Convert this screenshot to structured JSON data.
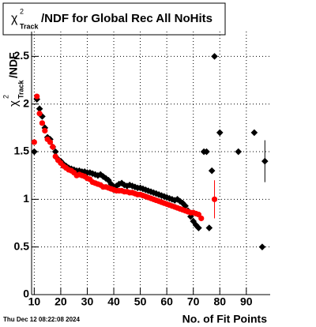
{
  "chart_data": {
    "type": "scatter",
    "title_symbol": "χ",
    "title_sup": "2",
    "title_sub": "Track",
    "title_rest": "/NDF for Global Rec All NoHits",
    "ylabel_symbol": "χ",
    "ylabel_sup": "2",
    "ylabel_sub": "Track",
    "ylabel_rest": "/NDF",
    "xlabel": "No. of Fit Points",
    "timestamp": "Thu Dec 12 08:22:08 2024",
    "xlim": [
      9,
      99
    ],
    "ylim": [
      0,
      2.76
    ],
    "xticks": [
      10,
      20,
      30,
      40,
      50,
      60,
      70,
      80,
      90
    ],
    "yticks": [
      0,
      0.5,
      1,
      1.5,
      2,
      2.5
    ],
    "grid": true,
    "series": [
      {
        "color": "#000000",
        "marker": "diamond",
        "x": [
          10,
          11,
          12,
          13,
          14,
          15,
          16,
          17,
          18,
          19,
          20,
          21,
          22,
          23,
          24,
          25,
          26,
          27,
          28,
          29,
          30,
          31,
          32,
          33,
          34,
          35,
          36,
          37,
          38,
          39,
          40,
          41,
          42,
          43,
          44,
          45,
          46,
          47,
          48,
          49,
          50,
          51,
          52,
          53,
          54,
          55,
          56,
          57,
          58,
          59,
          60,
          61,
          62,
          63,
          64,
          65,
          66,
          67,
          68,
          69,
          70,
          71,
          72,
          74,
          75,
          76,
          77,
          78,
          80,
          87,
          93,
          96,
          97
        ],
        "values": [
          1.5,
          2.05,
          1.95,
          1.87,
          1.75,
          1.65,
          1.63,
          1.55,
          1.5,
          1.42,
          1.4,
          1.37,
          1.35,
          1.33,
          1.32,
          1.31,
          1.3,
          1.3,
          1.29,
          1.29,
          1.28,
          1.28,
          1.27,
          1.26,
          1.25,
          1.26,
          1.24,
          1.22,
          1.2,
          1.16,
          1.13,
          1.14,
          1.16,
          1.17,
          1.15,
          1.14,
          1.15,
          1.14,
          1.13,
          1.12,
          1.12,
          1.11,
          1.1,
          1.09,
          1.08,
          1.07,
          1.06,
          1.05,
          1.04,
          1.03,
          1.02,
          1.01,
          1.0,
          0.99,
          1.0,
          0.98,
          0.96,
          0.93,
          0.88,
          0.82,
          0.77,
          0.73,
          0.7,
          1.5,
          1.5,
          0.7,
          1.3,
          2.5,
          1.7,
          1.5,
          1.7,
          0.5,
          1.4
        ],
        "errors": [
          null,
          null,
          null,
          null,
          null,
          null,
          null,
          null,
          null,
          null,
          null,
          null,
          null,
          null,
          null,
          null,
          null,
          null,
          null,
          null,
          null,
          null,
          null,
          null,
          null,
          null,
          null,
          null,
          null,
          null,
          null,
          null,
          null,
          null,
          null,
          null,
          null,
          null,
          null,
          null,
          null,
          null,
          null,
          null,
          null,
          null,
          null,
          null,
          null,
          null,
          null,
          null,
          null,
          null,
          null,
          null,
          null,
          null,
          null,
          null,
          null,
          null,
          null,
          null,
          null,
          null,
          null,
          null,
          null,
          null,
          null,
          null,
          0.22
        ]
      },
      {
        "color": "#ff0000",
        "marker": "circle",
        "x": [
          10,
          11,
          12,
          13,
          14,
          15,
          16,
          17,
          18,
          19,
          20,
          21,
          22,
          23,
          24,
          25,
          26,
          27,
          28,
          29,
          30,
          31,
          32,
          33,
          34,
          35,
          36,
          37,
          38,
          39,
          40,
          41,
          42,
          43,
          44,
          45,
          46,
          47,
          48,
          49,
          50,
          51,
          52,
          53,
          54,
          55,
          56,
          57,
          58,
          59,
          60,
          61,
          62,
          63,
          64,
          65,
          66,
          67,
          68,
          69,
          70,
          71,
          72,
          73,
          78
        ],
        "values": [
          1.6,
          2.08,
          1.9,
          1.8,
          1.72,
          1.63,
          1.6,
          1.55,
          1.45,
          1.41,
          1.38,
          1.35,
          1.33,
          1.31,
          1.3,
          1.28,
          1.25,
          1.26,
          1.25,
          1.24,
          1.22,
          1.21,
          1.18,
          1.17,
          1.16,
          1.15,
          1.13,
          1.13,
          1.12,
          1.11,
          1.1,
          1.09,
          1.09,
          1.09,
          1.08,
          1.08,
          1.07,
          1.07,
          1.06,
          1.05,
          1.05,
          1.04,
          1.03,
          1.02,
          1.01,
          1.0,
          0.99,
          0.98,
          0.97,
          0.96,
          0.95,
          0.94,
          0.93,
          0.92,
          0.91,
          0.9,
          0.89,
          0.88,
          0.87,
          0.86,
          0.86,
          0.85,
          0.84,
          0.8,
          1.0
        ],
        "errors": [
          null,
          null,
          null,
          null,
          null,
          null,
          null,
          null,
          null,
          null,
          null,
          null,
          null,
          null,
          null,
          null,
          null,
          null,
          null,
          null,
          null,
          null,
          null,
          null,
          null,
          null,
          null,
          null,
          null,
          null,
          null,
          null,
          null,
          null,
          null,
          null,
          null,
          null,
          null,
          null,
          null,
          null,
          null,
          null,
          null,
          null,
          null,
          null,
          null,
          null,
          null,
          null,
          null,
          null,
          null,
          null,
          null,
          null,
          null,
          null,
          null,
          null,
          null,
          null,
          0.2
        ]
      }
    ]
  }
}
